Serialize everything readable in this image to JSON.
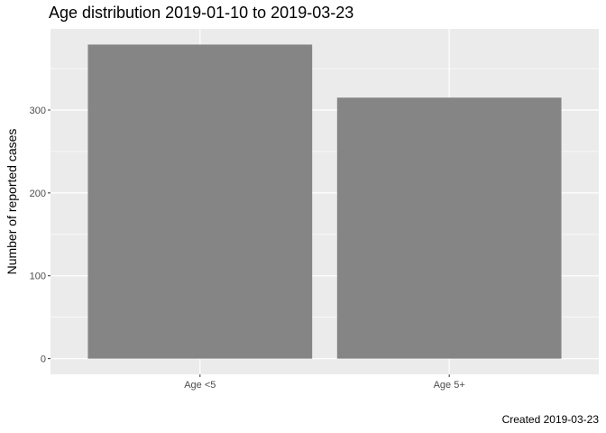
{
  "chart_data": {
    "type": "bar",
    "title": "Age distribution 2019-01-10 to 2019-03-23",
    "xlabel": "",
    "ylabel": "Number of reported cases",
    "categories": [
      "Age <5",
      "Age 5+"
    ],
    "values": [
      379,
      315
    ],
    "ylim": [
      -18.95,
      397.95
    ],
    "yticks": [
      0,
      100,
      200,
      300
    ],
    "grid": true,
    "legend": "none",
    "bar_color": "#858585",
    "panel_color": "#ebebeb",
    "caption": "Created 2019-03-23"
  }
}
